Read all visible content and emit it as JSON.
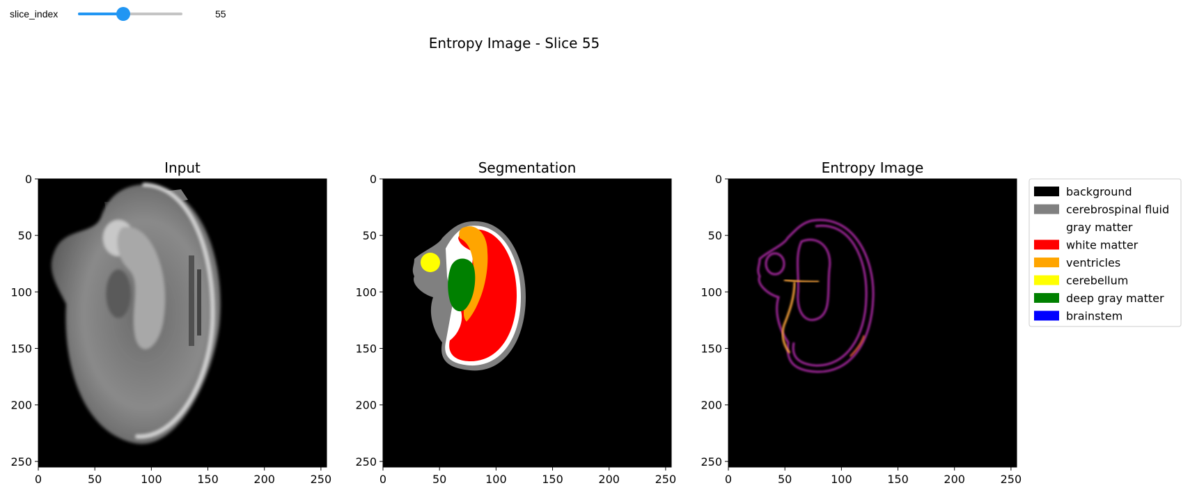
{
  "widget": {
    "label": "slice_index",
    "value": 55,
    "value_text": "55",
    "min": 0,
    "max": 127,
    "accent": "#2196f3",
    "track_color": "#c4c4c4"
  },
  "figure": {
    "suptitle": "Entropy Image - Slice 55",
    "panels": [
      {
        "title": "Input",
        "image": "grayscale MRI slice"
      },
      {
        "title": "Segmentation",
        "image": "label map"
      },
      {
        "title": "Entropy Image",
        "image": "entropy heatmap",
        "colormap": "inferno"
      }
    ],
    "axis": {
      "xlim": [
        0,
        255
      ],
      "ylim": [
        255,
        0
      ],
      "xticks": [
        0,
        50,
        100,
        150,
        200,
        250
      ],
      "yticks": [
        0,
        50,
        100,
        150,
        200,
        250
      ],
      "xtick_labels": [
        "0",
        "50",
        "100",
        "150",
        "200",
        "250"
      ],
      "ytick_labels": [
        "0",
        "50",
        "100",
        "150",
        "200",
        "250"
      ]
    },
    "legend": {
      "placement": "right",
      "items": [
        {
          "label": "background",
          "color": "#000000"
        },
        {
          "label": "cerebrospinal fluid",
          "color": "#808080"
        },
        {
          "label": "gray matter",
          "color": "#ffffff"
        },
        {
          "label": "white matter",
          "color": "#ff0000"
        },
        {
          "label": "ventricles",
          "color": "#ffa500"
        },
        {
          "label": "cerebellum",
          "color": "#ffff00"
        },
        {
          "label": "deep gray matter",
          "color": "#008000"
        },
        {
          "label": "brainstem",
          "color": "#0000ff"
        }
      ]
    }
  }
}
